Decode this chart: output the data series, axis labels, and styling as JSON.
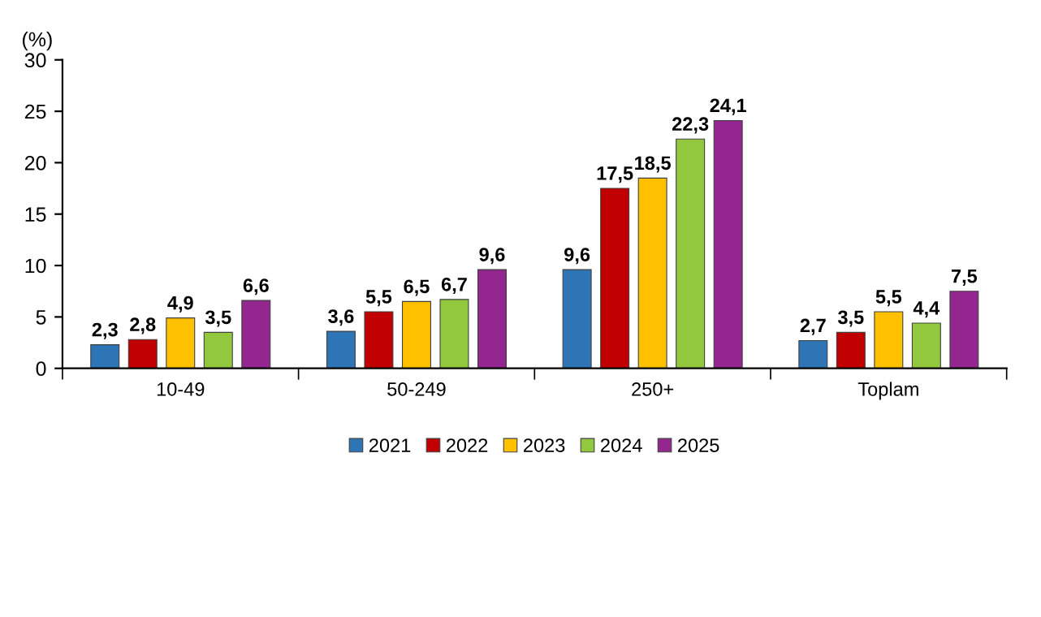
{
  "chart_data": {
    "type": "bar",
    "ylabel": "(%)",
    "categories": [
      "10-49",
      "50-249",
      "250+",
      "Toplam"
    ],
    "series": [
      {
        "name": "2021",
        "color": "#2e75b6",
        "values": [
          2.3,
          3.6,
          9.6,
          2.7
        ],
        "value_labels": [
          "2,3",
          "3,6",
          "9,6",
          "2,7"
        ]
      },
      {
        "name": "2022",
        "color": "#c00000",
        "values": [
          2.8,
          5.5,
          17.5,
          3.5
        ],
        "value_labels": [
          "2,8",
          "5,5",
          "17,5",
          "3,5"
        ]
      },
      {
        "name": "2023",
        "color": "#ffc000",
        "values": [
          4.9,
          6.5,
          18.5,
          5.5
        ],
        "value_labels": [
          "4,9",
          "6,5",
          "18,5",
          "5,5"
        ]
      },
      {
        "name": "2024",
        "color": "#92c83e",
        "values": [
          3.5,
          6.7,
          22.3,
          4.4
        ],
        "value_labels": [
          "3,5",
          "6,7",
          "22,3",
          "4,4"
        ]
      },
      {
        "name": "2025",
        "color": "#93278f",
        "values": [
          6.6,
          9.6,
          24.1,
          7.5
        ],
        "value_labels": [
          "6,6",
          "9,6",
          "24,1",
          "7,5"
        ]
      }
    ],
    "ylim": [
      0,
      30
    ],
    "yticks": [
      0,
      5,
      10,
      15,
      20,
      25,
      30
    ],
    "grid": false,
    "legend": "bottom"
  }
}
